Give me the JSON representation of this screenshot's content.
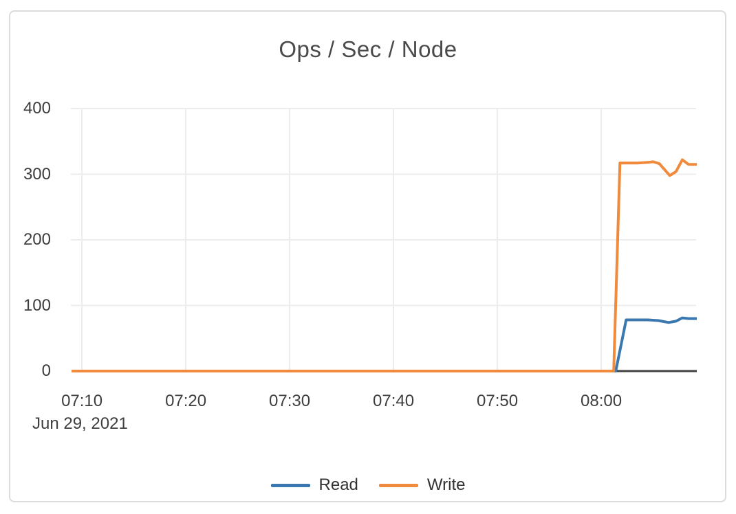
{
  "colors": {
    "background": "#ffffff",
    "card_border": "#dcdcdc",
    "grid": "#ececec",
    "axis_line": "#404040",
    "tick_text": "#3e3e3e",
    "title_text": "#4a4a4a",
    "read_blue": "#3c78b0",
    "write_orange": "#f08a3c"
  },
  "chart_data": {
    "type": "line",
    "title": "Ops / Sec / Node",
    "x_axis": {
      "date_label": "Jun 29, 2021",
      "x_unit": "minutes after 07:00 on Jun 29, 2021",
      "range_minutes": [
        9,
        69.2
      ],
      "ticks": [
        {
          "t": 10,
          "label": "07:10"
        },
        {
          "t": 20,
          "label": "07:20"
        },
        {
          "t": 30,
          "label": "07:30"
        },
        {
          "t": 40,
          "label": "07:40"
        },
        {
          "t": 50,
          "label": "07:50"
        },
        {
          "t": 60,
          "label": "08:00"
        }
      ]
    },
    "y_axis": {
      "range": [
        0,
        400
      ],
      "ticks": [
        0,
        100,
        200,
        300,
        400
      ]
    },
    "grid": true,
    "legend_position": "bottom-center",
    "series": [
      {
        "name": "Read",
        "color": "#3c78b0",
        "points": [
          [
            9,
            0
          ],
          [
            20,
            0
          ],
          [
            30,
            0
          ],
          [
            40,
            0
          ],
          [
            50,
            0
          ],
          [
            61.4,
            0
          ],
          [
            62.4,
            78
          ],
          [
            63.5,
            78
          ],
          [
            64.5,
            78
          ],
          [
            65.5,
            77
          ],
          [
            66.5,
            74
          ],
          [
            67.2,
            76
          ],
          [
            67.8,
            81
          ],
          [
            68.4,
            80
          ],
          [
            69.2,
            80
          ]
        ]
      },
      {
        "name": "Write",
        "color": "#f08a3c",
        "points": [
          [
            9,
            0
          ],
          [
            20,
            0
          ],
          [
            30,
            0
          ],
          [
            40,
            0
          ],
          [
            50,
            0
          ],
          [
            61.2,
            0
          ],
          [
            61.8,
            317
          ],
          [
            62.5,
            317
          ],
          [
            63.5,
            317
          ],
          [
            64.5,
            318
          ],
          [
            65.0,
            319
          ],
          [
            65.6,
            316
          ],
          [
            66.6,
            298
          ],
          [
            67.2,
            304
          ],
          [
            67.8,
            322
          ],
          [
            68.4,
            315
          ],
          [
            69.2,
            315
          ]
        ]
      }
    ]
  }
}
